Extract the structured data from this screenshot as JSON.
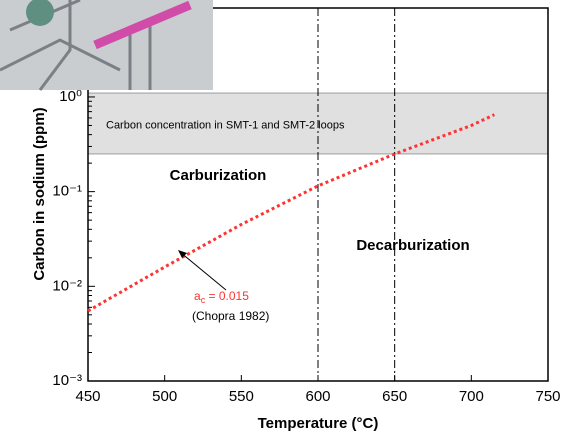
{
  "chart_data": {
    "type": "line",
    "x_label": "Temperature (°C)",
    "y_label": "Carbon in sodium (ppm)",
    "x": [
      450,
      500,
      550,
      600,
      650,
      700,
      715
    ],
    "values": [
      0.0055,
      0.016,
      0.045,
      0.115,
      0.25,
      0.5,
      0.65
    ],
    "color": "#ff3333",
    "xlim": [
      450,
      750
    ],
    "xticks": [
      450,
      500,
      550,
      600,
      650,
      700,
      750
    ],
    "ylim": [
      0.001,
      8.7
    ],
    "log_y": true,
    "yticks": [
      {
        "value": 1,
        "label": "10⁰"
      },
      {
        "value": 0.1,
        "label": "10⁻¹"
      },
      {
        "value": 0.01,
        "label": "10⁻²"
      },
      {
        "value": 0.001,
        "label": "10⁻³"
      }
    ],
    "band": {
      "ymin": 0.25,
      "ymax": 1.1,
      "color": "#e0e0e0",
      "label": "Carbon concentration in SMT-1 and SMT-2 loops"
    },
    "vlines": [
      600,
      650
    ],
    "annotations": [
      "Carburization",
      "Decarburization",
      "ac = 0.015",
      "(Chopra 1982)"
    ]
  }
}
